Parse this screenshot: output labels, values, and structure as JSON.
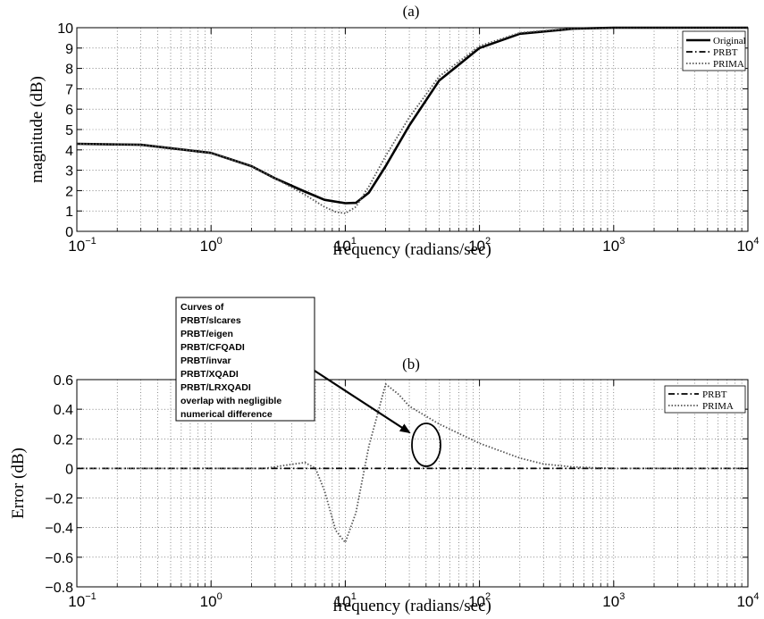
{
  "chart_data": [
    {
      "type": "line",
      "title": "(a)",
      "xlabel": "frequency (radians/sec)",
      "ylabel": "magnitude (dB)",
      "xscale": "log",
      "xlim": [
        0.1,
        10000
      ],
      "ylim": [
        0,
        10
      ],
      "xticks": [
        {
          "base": "10",
          "exp": "−1"
        },
        {
          "base": "10",
          "exp": "0"
        },
        {
          "base": "10",
          "exp": "1"
        },
        {
          "base": "10",
          "exp": "2"
        },
        {
          "base": "10",
          "exp": "3"
        },
        {
          "base": "10",
          "exp": "4"
        }
      ],
      "yticks": [
        "0",
        "1",
        "2",
        "3",
        "4",
        "5",
        "6",
        "7",
        "8",
        "9",
        "10"
      ],
      "grid": true,
      "legend_position": "top-right",
      "series": [
        {
          "name": "Original",
          "style": "solid",
          "x": [
            0.1,
            0.3,
            1,
            2,
            3,
            5,
            7,
            10,
            12,
            15,
            20,
            30,
            50,
            100,
            200,
            500,
            1000,
            10000
          ],
          "y": [
            4.3,
            4.25,
            3.85,
            3.2,
            2.6,
            1.95,
            1.55,
            1.38,
            1.4,
            1.9,
            3.2,
            5.2,
            7.4,
            9.0,
            9.7,
            9.95,
            10.0,
            10.0
          ]
        },
        {
          "name": "PRBT",
          "style": "dashdot",
          "x": [
            0.1,
            0.3,
            1,
            2,
            3,
            5,
            7,
            10,
            12,
            15,
            20,
            30,
            50,
            100,
            200,
            500,
            1000,
            10000
          ],
          "y": [
            4.3,
            4.25,
            3.85,
            3.2,
            2.6,
            1.95,
            1.55,
            1.38,
            1.4,
            1.9,
            3.2,
            5.2,
            7.4,
            9.0,
            9.7,
            9.95,
            10.0,
            10.0
          ]
        },
        {
          "name": "PRIMA",
          "style": "dotted",
          "x": [
            0.1,
            0.3,
            1,
            2,
            3,
            5,
            7,
            8.5,
            10,
            12,
            15,
            20,
            30,
            50,
            100,
            200,
            500,
            1000,
            10000
          ],
          "y": [
            4.3,
            4.25,
            3.85,
            3.2,
            2.6,
            1.8,
            1.2,
            0.95,
            0.88,
            1.2,
            2.2,
            3.7,
            5.6,
            7.6,
            9.1,
            9.75,
            9.97,
            10.0,
            10.0
          ]
        }
      ]
    },
    {
      "type": "line",
      "title": "(b)",
      "xlabel": "frequency (radians/sec)",
      "ylabel": "Error (dB)",
      "xscale": "log",
      "xlim": [
        0.1,
        10000
      ],
      "ylim": [
        -0.8,
        0.6
      ],
      "xticks": [
        {
          "base": "10",
          "exp": "−1"
        },
        {
          "base": "10",
          "exp": "0"
        },
        {
          "base": "10",
          "exp": "1"
        },
        {
          "base": "10",
          "exp": "2"
        },
        {
          "base": "10",
          "exp": "3"
        },
        {
          "base": "10",
          "exp": "4"
        }
      ],
      "yticks": [
        "−0.8",
        "−0.6",
        "−0.4",
        "−0.2",
        "0",
        "0.2",
        "0.4",
        "0.6"
      ],
      "grid": true,
      "legend_position": "top-right",
      "series": [
        {
          "name": "PRBT",
          "style": "dashdot",
          "x": [
            0.1,
            10000
          ],
          "y": [
            0,
            0
          ]
        },
        {
          "name": "PRIMA",
          "style": "dotted",
          "x": [
            0.1,
            2.5,
            3.5,
            5,
            6,
            7,
            8.5,
            10,
            12,
            15,
            20,
            25,
            30,
            50,
            100,
            200,
            300,
            500,
            1000,
            10000
          ],
          "y": [
            0,
            0,
            0.02,
            0.04,
            0,
            -0.15,
            -0.42,
            -0.5,
            -0.3,
            0.15,
            0.57,
            0.5,
            0.42,
            0.3,
            0.17,
            0.07,
            0.03,
            0.01,
            0,
            0
          ]
        }
      ],
      "annotation": {
        "lines": [
          "Curves of",
          "PRBT/slcares",
          "PRBT/eigen",
          "PRBT/CFQADI",
          "PRBT/invar",
          "PRBT/XQADI",
          "PRBT/LRXQADI",
          "overlap with negligible",
          "numerical difference"
        ],
        "target": {
          "x": 40,
          "y": 0
        }
      }
    }
  ]
}
